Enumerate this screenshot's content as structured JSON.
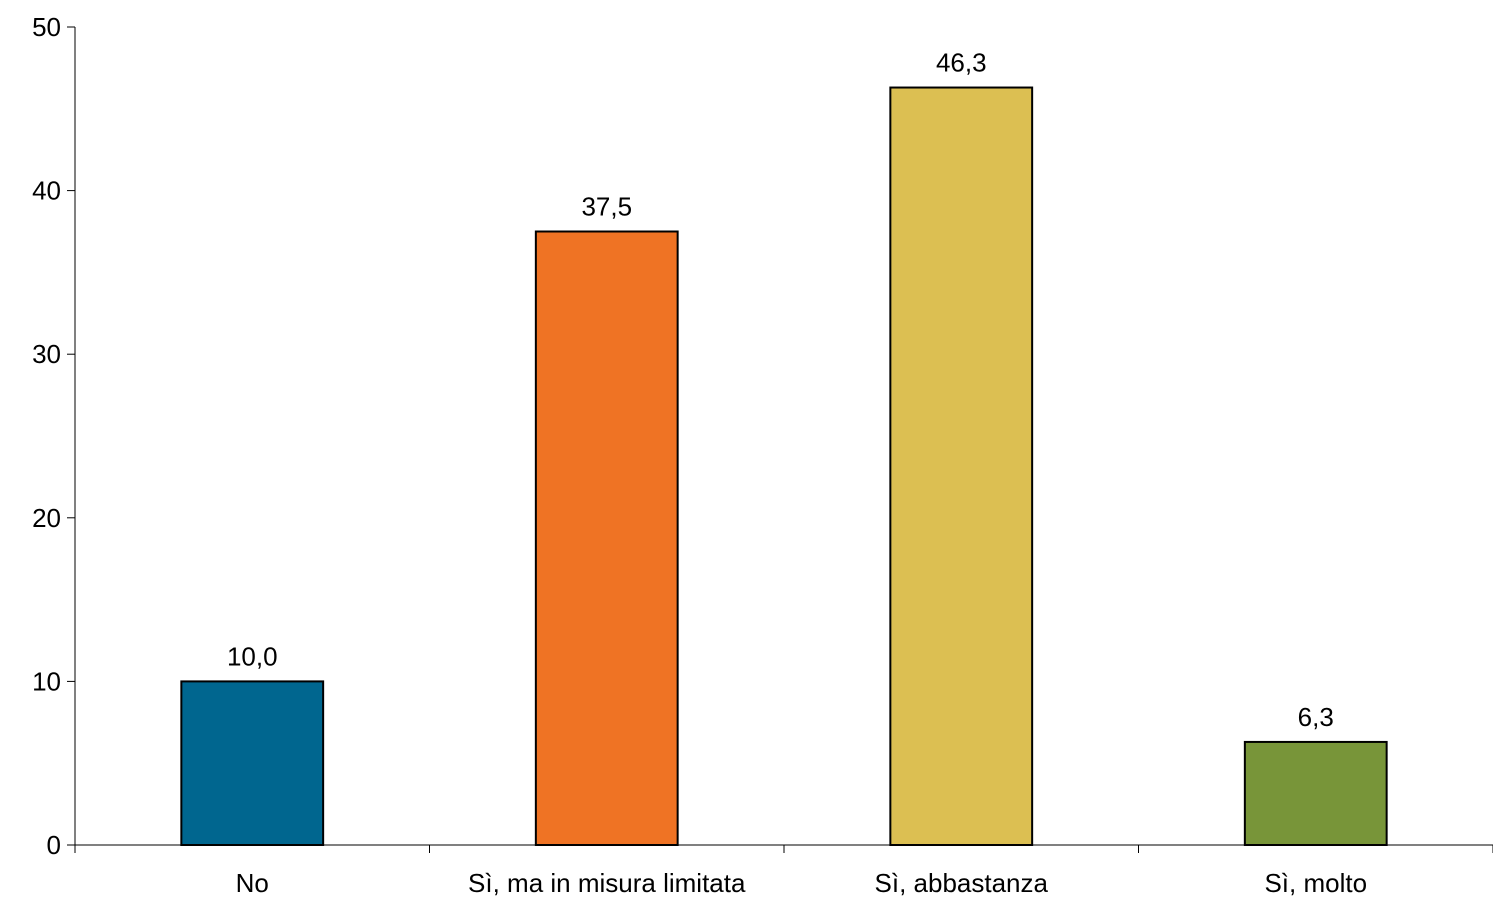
{
  "chart_data": {
    "type": "bar",
    "categories": [
      "No",
      "Sì, ma in misura limitata",
      "Sì, abbastanza",
      "Sì, molto"
    ],
    "values": [
      10.0,
      37.5,
      46.3,
      6.3
    ],
    "data_labels": [
      "10,0",
      "37,5",
      "46,3",
      "6,3"
    ],
    "colors": [
      "#00668f",
      "#ef7324",
      "#dcbf52",
      "#789539"
    ],
    "ylim": [
      0,
      50
    ],
    "yticks": [
      0,
      10,
      20,
      30,
      40,
      50
    ],
    "ytick_labels": [
      "0",
      "10",
      "20",
      "30",
      "40",
      "50"
    ],
    "grid": false,
    "legend": "none",
    "title": "",
    "xlabel": "",
    "ylabel": ""
  }
}
